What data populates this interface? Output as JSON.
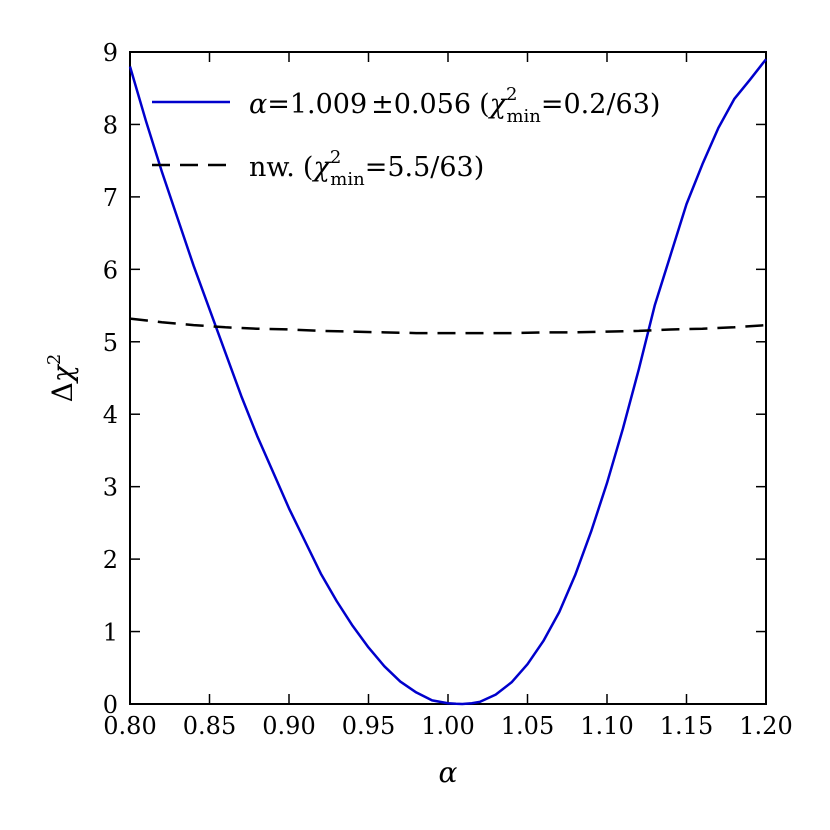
{
  "chart_data": {
    "type": "line",
    "xlabel": "α",
    "ylabel": "Δχ²",
    "xlim": [
      0.8,
      1.2
    ],
    "ylim": [
      0,
      9
    ],
    "xticks": [
      0.8,
      0.85,
      0.9,
      0.95,
      1.0,
      1.05,
      1.1,
      1.15,
      1.2
    ],
    "xtick_labels": [
      "0.80",
      "0.85",
      "0.90",
      "0.95",
      "1.00",
      "1.05",
      "1.10",
      "1.15",
      "1.20"
    ],
    "yticks": [
      0,
      1,
      2,
      3,
      4,
      5,
      6,
      7,
      8,
      9
    ],
    "ytick_labels": [
      "0",
      "1",
      "2",
      "3",
      "4",
      "5",
      "6",
      "7",
      "8",
      "9"
    ],
    "grid": false,
    "legend_position": "top-right",
    "series": [
      {
        "name": "α = 1.009 ± 0.056 (χ²min = 0.2/63)",
        "legend_label": "α = 1.009 ± 0.056 (χ²min = 0.2/63)",
        "color": "#0000cc",
        "style": "solid",
        "x": [
          0.8,
          0.81,
          0.82,
          0.83,
          0.84,
          0.85,
          0.86,
          0.87,
          0.88,
          0.89,
          0.9,
          0.91,
          0.92,
          0.93,
          0.94,
          0.95,
          0.96,
          0.97,
          0.98,
          0.99,
          1.0,
          1.005,
          1.009,
          1.015,
          1.02,
          1.03,
          1.04,
          1.05,
          1.06,
          1.07,
          1.08,
          1.09,
          1.1,
          1.11,
          1.12,
          1.13,
          1.14,
          1.15,
          1.16,
          1.17,
          1.18,
          1.19,
          1.2
        ],
        "y": [
          8.8,
          8.05,
          7.35,
          6.7,
          6.05,
          5.45,
          4.85,
          4.25,
          3.7,
          3.2,
          2.7,
          2.25,
          1.8,
          1.42,
          1.08,
          0.78,
          0.52,
          0.31,
          0.16,
          0.05,
          0.01,
          0.003,
          0.0,
          0.01,
          0.03,
          0.13,
          0.3,
          0.55,
          0.87,
          1.27,
          1.78,
          2.38,
          3.05,
          3.8,
          4.62,
          5.5,
          6.2,
          6.9,
          7.45,
          7.95,
          8.35,
          8.62,
          8.9
        ]
      },
      {
        "name": "nw. (χ²min = 5.5/63)",
        "legend_label": "nw. (χ²min = 5.5/63)",
        "color": "#000000",
        "style": "dashed",
        "x": [
          0.8,
          0.82,
          0.84,
          0.86,
          0.88,
          0.9,
          0.92,
          0.94,
          0.96,
          0.98,
          1.0,
          1.02,
          1.04,
          1.06,
          1.08,
          1.1,
          1.12,
          1.14,
          1.16,
          1.18,
          1.2
        ],
        "y": [
          5.32,
          5.27,
          5.23,
          5.2,
          5.18,
          5.17,
          5.15,
          5.14,
          5.13,
          5.12,
          5.12,
          5.12,
          5.12,
          5.13,
          5.13,
          5.14,
          5.15,
          5.17,
          5.18,
          5.2,
          5.23
        ]
      }
    ],
    "legend": {
      "blue": {
        "alpha_sym": "α",
        "eq1": "=",
        "value": "1.009",
        "pm": "±",
        "err": "0.056",
        "open": "(",
        "chi": "χ",
        "sup": "2",
        "sub": "min",
        "eq2": "=",
        "ratio": "0.2/63",
        "close": ")"
      },
      "black": {
        "prefix": "nw.",
        "open": "(",
        "chi": "χ",
        "sup": "2",
        "sub": "min",
        "eq2": "=",
        "ratio": "5.5/63",
        "close": ")"
      }
    },
    "axis_label_parts": {
      "x": "α",
      "y_delta": "Δ",
      "y_chi": "χ",
      "y_sup": "2"
    }
  }
}
